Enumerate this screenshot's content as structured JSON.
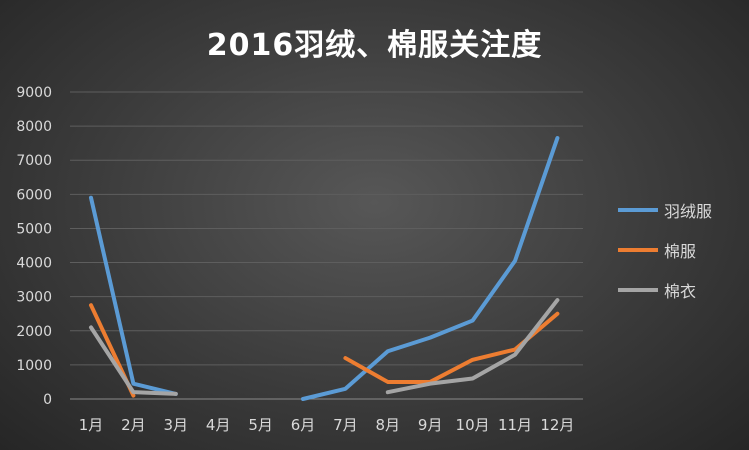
{
  "chart_data": {
    "type": "line",
    "title": "2016羽绒、棉服关注度",
    "categories": [
      "1月",
      "2月",
      "3月",
      "4月",
      "5月",
      "6月",
      "7月",
      "8月",
      "9月",
      "10月",
      "11月",
      "12月"
    ],
    "ylim": [
      0,
      9000
    ],
    "yticks": [
      "0",
      "1000",
      "2000",
      "3000",
      "4000",
      "5000",
      "6000",
      "7000",
      "8000",
      "9000"
    ],
    "grid": true,
    "legend_position": "right",
    "series": [
      {
        "name": "羽绒服",
        "color": "#5b9bd5",
        "values": [
          5900,
          450,
          150,
          null,
          null,
          0,
          300,
          1400,
          1800,
          2300,
          4050,
          7650
        ]
      },
      {
        "name": "棉服",
        "color": "#ed7d31",
        "values": [
          2750,
          100,
          null,
          null,
          null,
          null,
          1200,
          500,
          500,
          1150,
          1450,
          2500
        ]
      },
      {
        "name": "棉衣",
        "color": "#a5a5a5",
        "values": [
          2100,
          200,
          150,
          null,
          null,
          null,
          null,
          200,
          450,
          600,
          1300,
          2900
        ]
      }
    ]
  }
}
